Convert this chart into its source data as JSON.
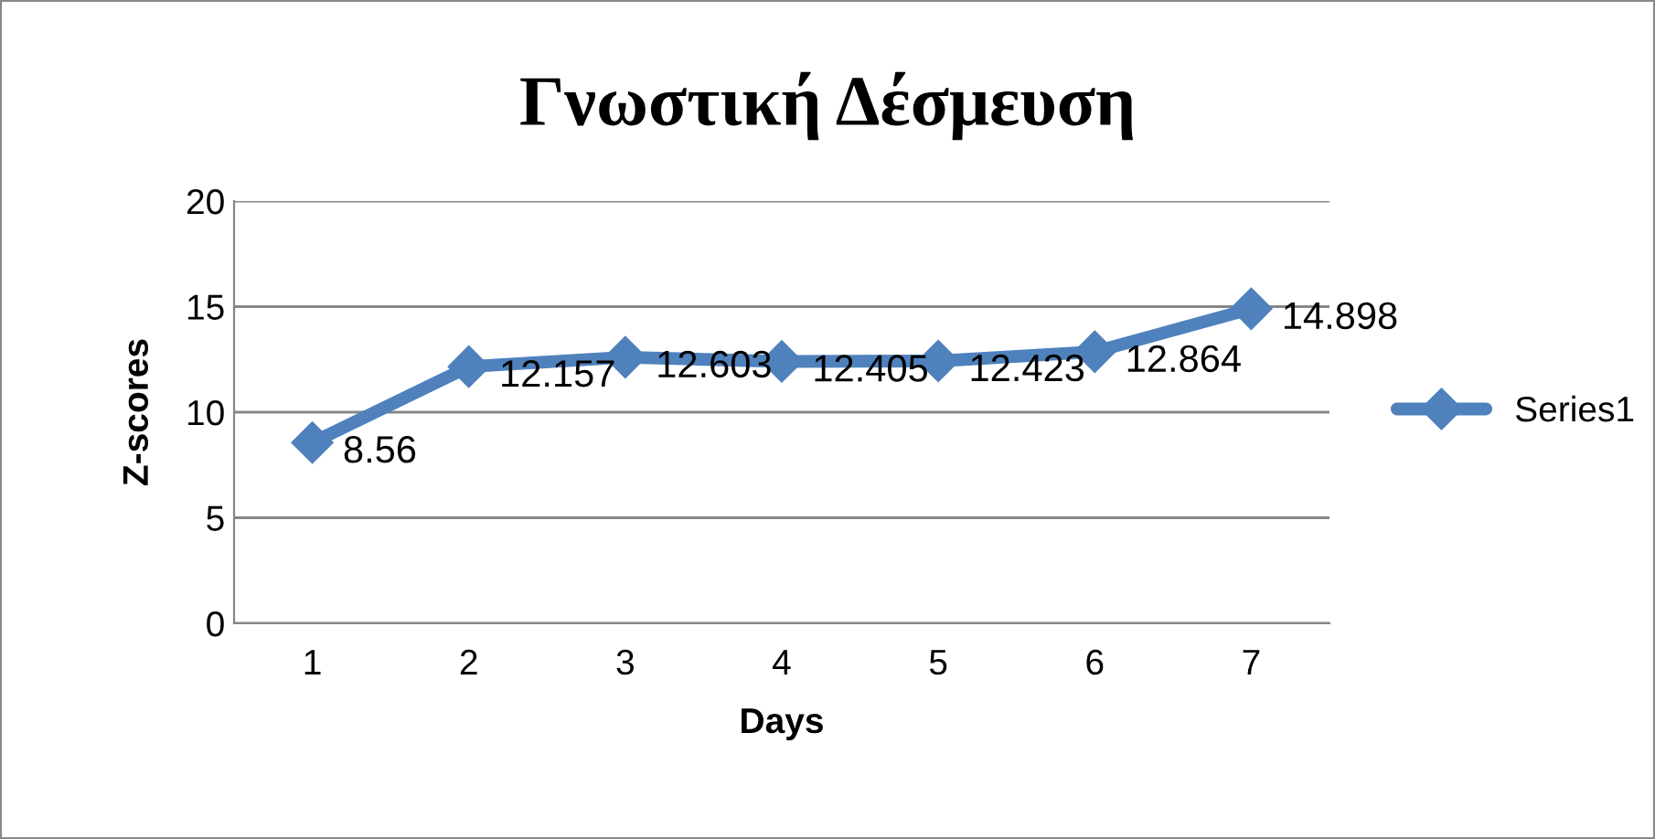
{
  "chart_data": {
    "type": "line",
    "title": "Γνωστική Δέσμευση",
    "xlabel": "Days",
    "ylabel": "Z-scores",
    "categories": [
      "1",
      "2",
      "3",
      "4",
      "5",
      "6",
      "7"
    ],
    "series": [
      {
        "name": "Series1",
        "color": "#4f81bd",
        "values": [
          8.56,
          12.157,
          12.603,
          12.405,
          12.423,
          12.864,
          14.898
        ]
      }
    ],
    "ylim": [
      0,
      20
    ],
    "yticks": [
      0,
      5,
      10,
      15,
      20
    ],
    "grid": "y",
    "legend": "right",
    "marker": "diamond",
    "line_style": "solid",
    "data_labels": true
  }
}
